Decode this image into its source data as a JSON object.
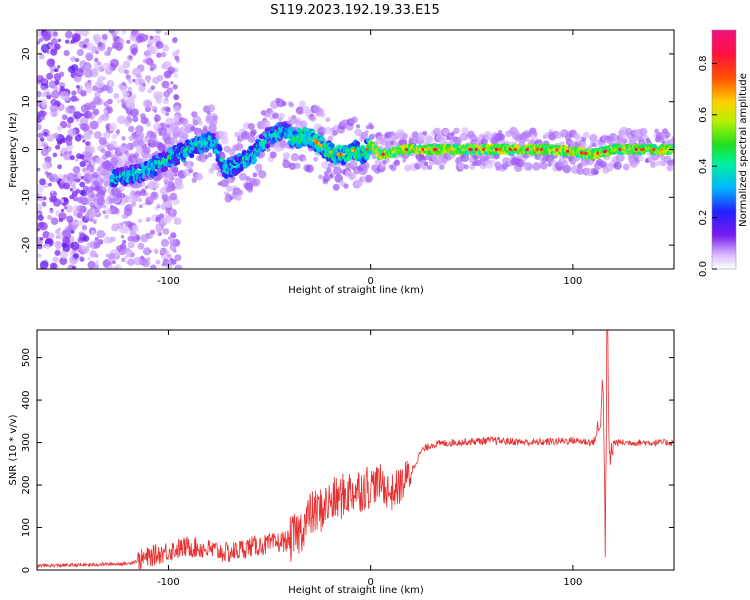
{
  "title": "S119.2023.192.19.33.E15",
  "colorbar": {
    "label": "Normalized spectral amplitude",
    "ticks": [
      "0.0",
      "0.2",
      "0.4",
      "0.6",
      "0.8"
    ],
    "tick_values": [
      0.0,
      0.2,
      0.4,
      0.6,
      0.8
    ],
    "range": [
      0,
      0.93
    ]
  },
  "chart_data": [
    {
      "type": "heatmap",
      "title": "",
      "xlabel": "Height of straight line (km)",
      "ylabel": "Frequency (Hz)",
      "xlim": [
        -165,
        150
      ],
      "ylim": [
        -25,
        25
      ],
      "x_ticks": [
        -100,
        0,
        100
      ],
      "y_ticks": [
        -20,
        -10,
        0,
        10,
        20
      ],
      "ridge": {
        "x": [
          -125,
          -115,
          -105,
          -95,
          -85,
          -78,
          -72,
          -65,
          -58,
          -50,
          -42,
          -38,
          -32,
          -28,
          -22,
          -18,
          -12,
          -8,
          -4,
          0,
          4,
          8,
          15,
          30,
          60,
          90,
          110,
          120,
          148
        ],
        "frequency": [
          -6,
          -5,
          -3,
          -1,
          1,
          2,
          -4,
          -3,
          -1,
          3,
          4,
          2,
          3,
          2,
          0,
          -1,
          -1,
          0,
          -1,
          1,
          -1,
          -1,
          0,
          0,
          0,
          0,
          -1,
          0,
          0
        ]
      },
      "grid": false
    },
    {
      "type": "line",
      "title": "",
      "xlabel": "Height of straight line (km)",
      "ylabel": "SNR (10 * v/v)",
      "xlim": [
        -165,
        150
      ],
      "ylim": [
        0,
        565
      ],
      "x_ticks": [
        -100,
        0,
        100
      ],
      "y_ticks": [
        0,
        100,
        200,
        300,
        400,
        500
      ],
      "color": "#e83030",
      "grid": false,
      "series": [
        {
          "x": [
            -165,
            -140,
            -120,
            -110,
            -100,
            -90,
            -80,
            -70,
            -60,
            -50,
            -40,
            -35,
            -30,
            -25,
            -20,
            -15,
            -10,
            -5,
            0,
            5,
            10,
            15,
            20,
            25,
            30,
            40,
            60,
            80,
            100,
            110,
            113,
            115,
            116,
            117,
            118,
            120,
            125,
            150
          ],
          "y": [
            10,
            12,
            15,
            30,
            45,
            55,
            48,
            40,
            55,
            60,
            70,
            90,
            130,
            140,
            160,
            170,
            185,
            190,
            200,
            205,
            180,
            200,
            230,
            280,
            295,
            300,
            305,
            300,
            305,
            300,
            330,
            450,
            50,
            565,
            250,
            300,
            300,
            300
          ]
        }
      ]
    }
  ]
}
